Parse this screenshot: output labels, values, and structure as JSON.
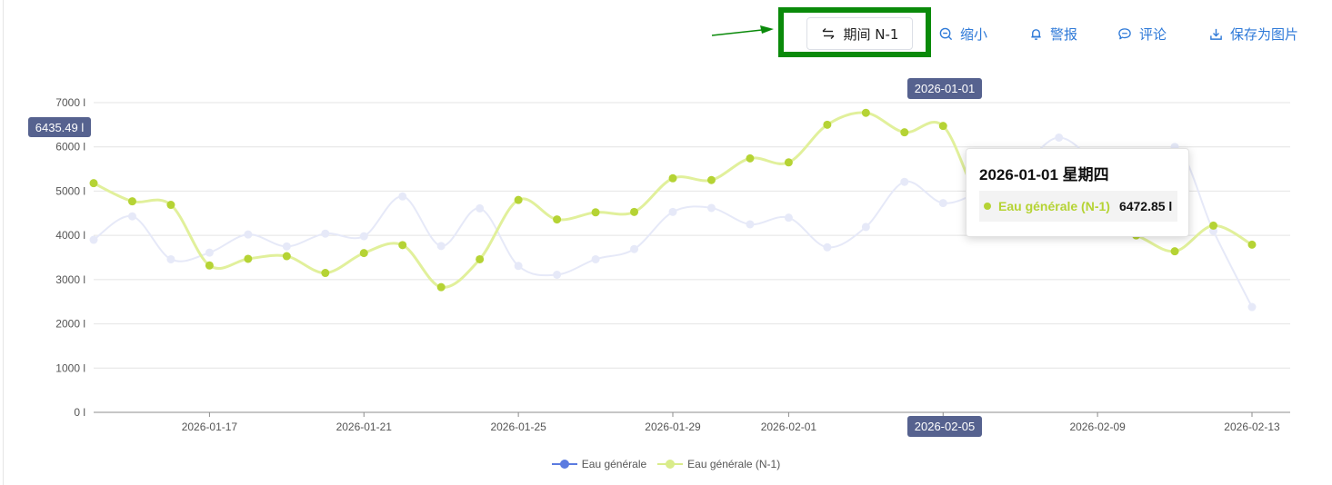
{
  "toolbar": {
    "period_label": "期间 N-1",
    "zoom_label": "缩小",
    "alert_label": "警报",
    "comment_label": "评论",
    "save_label": "保存为图片",
    "accent_color": "#2f7ad8",
    "highlight_color": "#0a8a0a"
  },
  "icons": {
    "period": "swap-arrows-icon",
    "zoom": "zoom-out-icon",
    "alert": "bell-icon",
    "comment": "comment-bubble-icon",
    "save": "download-icon"
  },
  "tooltip": {
    "title": "2026-01-01 星期四",
    "series_name": "Eau générale (N-1)",
    "value": "6472.85 l"
  },
  "crosshair": {
    "y_label": "6435.49 l",
    "x_label_top": "2026-01-01",
    "x_label_bottom": "2026-02-05"
  },
  "chart_data": {
    "type": "line",
    "title": "",
    "xlabel": "",
    "ylabel": "",
    "ylim": [
      0,
      7000
    ],
    "y_ticks": [
      "0 l",
      "1000 l",
      "2000 l",
      "3000 l",
      "4000 l",
      "5000 l",
      "6000 l",
      "7000 l"
    ],
    "x_ticks": [
      "2026-01-17",
      "2026-01-21",
      "2026-01-25",
      "2026-01-29",
      "2026-02-01",
      "2026-02-05",
      "2026-02-09",
      "2026-02-13"
    ],
    "x_dates": [
      "2026-01-14",
      "2026-01-15",
      "2026-01-16",
      "2026-01-17",
      "2026-01-18",
      "2026-01-19",
      "2026-01-20",
      "2026-01-21",
      "2026-01-22",
      "2026-01-23",
      "2026-01-24",
      "2026-01-25",
      "2026-01-26",
      "2026-01-27",
      "2026-01-28",
      "2026-01-29",
      "2026-01-30",
      "2026-01-31",
      "2026-02-01",
      "2026-02-02",
      "2026-02-03",
      "2026-02-04",
      "2026-02-05",
      "2026-02-06",
      "2026-02-07",
      "2026-02-08",
      "2026-02-09",
      "2026-02-10",
      "2026-02-11",
      "2026-02-12",
      "2026-02-13"
    ],
    "grid": true,
    "legend_position": "bottom-center",
    "series": [
      {
        "name": "Eau générale",
        "color": "#5b7be0",
        "values": [
          3900,
          4430,
          3460,
          3610,
          4020,
          3750,
          4040,
          3980,
          4880,
          3760,
          4610,
          3310,
          3110,
          3460,
          3690,
          4530,
          4620,
          4250,
          4400,
          3730,
          4190,
          5210,
          4730,
          5020,
          5520,
          6210,
          5520,
          4250,
          6000,
          4100,
          2380
        ]
      },
      {
        "name": "Eau générale (N-1)",
        "color": "#b5d334",
        "values": [
          5180,
          4770,
          4690,
          3320,
          3470,
          3530,
          3150,
          3600,
          3780,
          2830,
          3460,
          4800,
          4360,
          4520,
          4530,
          5290,
          5250,
          5740,
          5650,
          6500,
          6770,
          6330,
          6473,
          4700,
          4300,
          4250,
          4200,
          4000,
          3640,
          4220,
          3790
        ]
      }
    ]
  }
}
